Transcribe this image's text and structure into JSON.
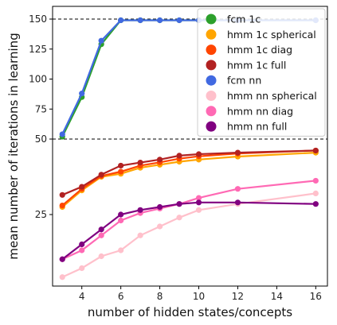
{
  "chart_data": {
    "type": "line",
    "xlabel": "number of hidden states/concepts",
    "ylabel": "mean number of iterations in learning",
    "xlim": [
      2.5,
      16.6
    ],
    "ylim": [
      13,
      160
    ],
    "x_ticks": [
      4,
      6,
      8,
      10,
      12,
      14,
      16
    ],
    "y_ticks": [
      25,
      50,
      75,
      100,
      125,
      150
    ],
    "y_scale_note": "non-linear: compressed segment between 25 and 50",
    "reference_lines": [
      150,
      50
    ],
    "legend_position": "top-right",
    "x": [
      3,
      4,
      5,
      6,
      7,
      8,
      9,
      10,
      12,
      16
    ],
    "series": [
      {
        "name": "fcm 1c",
        "color": "#2ca02c",
        "values": [
          52,
          85,
          129,
          149,
          149,
          149,
          149,
          149,
          149,
          149
        ]
      },
      {
        "name": "hmm 1c spherical",
        "color": "#ffa500",
        "values": [
          27.5,
          33,
          37.5,
          38.5,
          40.5,
          41.5,
          42.5,
          43.2,
          44.2,
          45.5
        ]
      },
      {
        "name": "hmm 1c diag",
        "color": "#ff4500",
        "values": [
          28,
          33.5,
          37.8,
          39.2,
          41.2,
          42.3,
          43.5,
          44.3,
          45.2,
          46.2
        ]
      },
      {
        "name": "hmm 1c full",
        "color": "#b22222",
        "values": [
          31.5,
          34.2,
          38.2,
          41.2,
          42.2,
          43.2,
          44.5,
          45.0,
          45.5,
          46.2
        ]
      },
      {
        "name": "fcm nn",
        "color": "#4169e1",
        "values": [
          54,
          88,
          132,
          149,
          149,
          149,
          149,
          149,
          149,
          149
        ]
      },
      {
        "name": "hmm nn spherical",
        "color": "#ffc0cb",
        "values": [
          14.5,
          16.0,
          18.0,
          19.0,
          21.5,
          23.0,
          24.5,
          26.5,
          28.5,
          32.0
        ]
      },
      {
        "name": "hmm nn diag",
        "color": "#ff69b4",
        "values": [
          17.5,
          19.0,
          21.5,
          24.0,
          25.5,
          27.0,
          28.5,
          30.5,
          33.5,
          36.2
        ]
      },
      {
        "name": "hmm nn full",
        "color": "#800080",
        "values": [
          17.5,
          20.0,
          22.5,
          25.0,
          26.5,
          27.5,
          28.5,
          29.0,
          29.0,
          28.5
        ]
      }
    ]
  }
}
